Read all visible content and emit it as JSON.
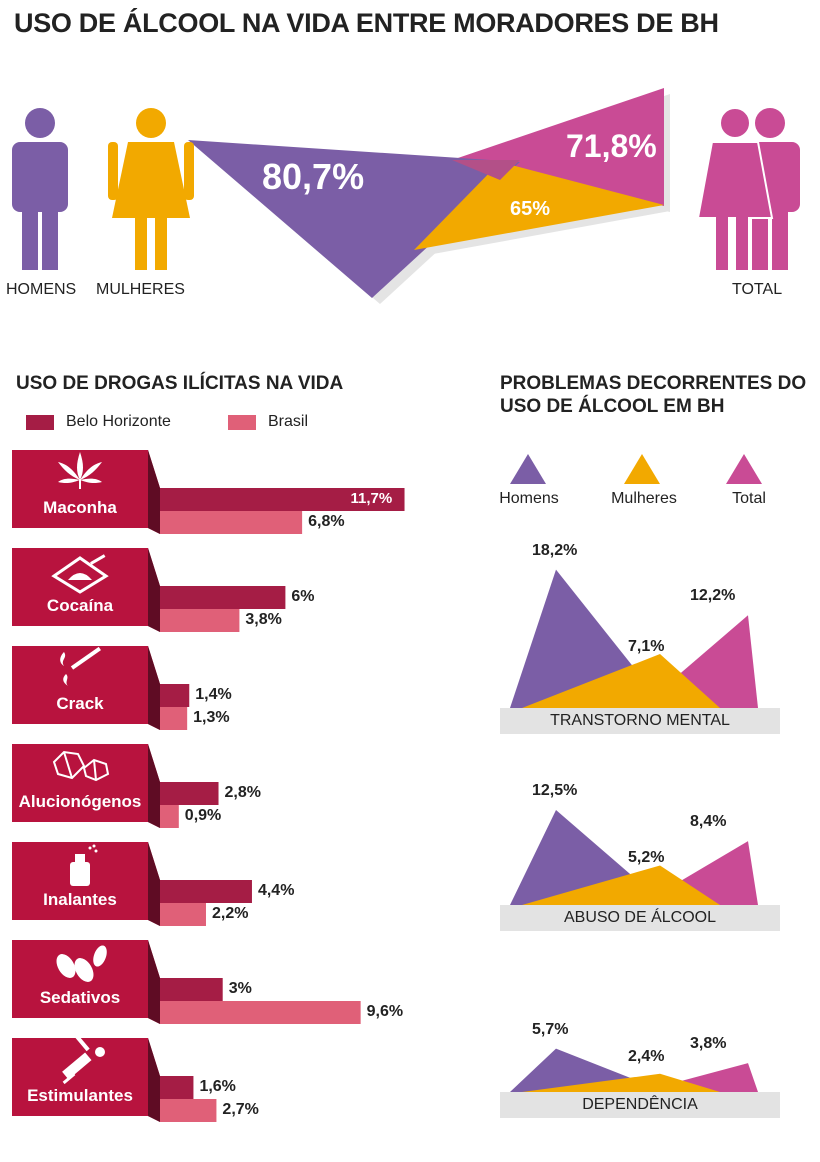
{
  "title": "USO DE ÁLCOOL NA VIDA ENTRE MORADORES DE BH",
  "colors": {
    "homens": "#7b5ea6",
    "mulheres": "#f2a900",
    "total": "#c94b95",
    "bh": "#a51d45",
    "brasil": "#e06078",
    "category_box": "#b8133e",
    "category_dark": "#5f0c24",
    "label_bg": "#e3e3e3"
  },
  "chart_data": [
    {
      "type": "area",
      "title": "USO DE ÁLCOOL NA VIDA ENTRE MORADORES DE BH",
      "series": [
        {
          "name": "HOMENS",
          "value": 80.7,
          "label": "80,7%"
        },
        {
          "name": "MULHERES",
          "value": 65,
          "label": "65%"
        },
        {
          "name": "TOTAL",
          "value": 71.8,
          "label": "71,8%"
        }
      ],
      "figure_labels": [
        "HOMENS",
        "MULHERES",
        "TOTAL"
      ]
    },
    {
      "type": "bar",
      "title": "USO DE DROGAS ILÍCITAS NA VIDA",
      "legend": [
        "Belo Horizonte",
        "Brasil"
      ],
      "categories": [
        "Maconha",
        "Cocaína",
        "Crack",
        "Alucionógenos",
        "Inalantes",
        "Sedativos",
        "Estimulantes"
      ],
      "icons": [
        "cannabis-leaf-icon",
        "cocaine-pile-icon",
        "crack-pipe-icon",
        "crystal-icon",
        "spray-bottle-icon",
        "pills-icon",
        "syringe-icon"
      ],
      "series": [
        {
          "name": "Belo Horizonte",
          "values": [
            11.7,
            6,
            1.4,
            2.8,
            4.4,
            3,
            1.6
          ],
          "labels": [
            "11,7%",
            "6%",
            "1,4%",
            "2,8%",
            "4,4%",
            "3%",
            "1,6%"
          ]
        },
        {
          "name": "Brasil",
          "values": [
            6.8,
            3.8,
            1.3,
            0.9,
            2.2,
            9.6,
            2.7
          ],
          "labels": [
            "6,8%",
            "3,8%",
            "1,3%",
            "0,9%",
            "2,2%",
            "9,6%",
            "2,7%"
          ]
        }
      ]
    },
    {
      "type": "area",
      "title": "PROBLEMAS DECORRENTES DO USO DE ÁLCOOL EM BH",
      "legend": [
        "Homens",
        "Mulheres",
        "Total"
      ],
      "categories": [
        "TRANSTORNO MENTAL",
        "ABUSO DE ÁLCOOL",
        "DEPENDÊNCIA"
      ],
      "series": [
        {
          "name": "Homens",
          "values": [
            18.2,
            12.5,
            5.7
          ],
          "labels": [
            "18,2%",
            "12,5%",
            "5,7%"
          ]
        },
        {
          "name": "Mulheres",
          "values": [
            7.1,
            5.2,
            2.4
          ],
          "labels": [
            "7,1%",
            "5,2%",
            "2,4%"
          ]
        },
        {
          "name": "Total",
          "values": [
            12.2,
            8.4,
            3.8
          ],
          "labels": [
            "12,2%",
            "8,4%",
            "3,8%"
          ]
        }
      ]
    }
  ]
}
